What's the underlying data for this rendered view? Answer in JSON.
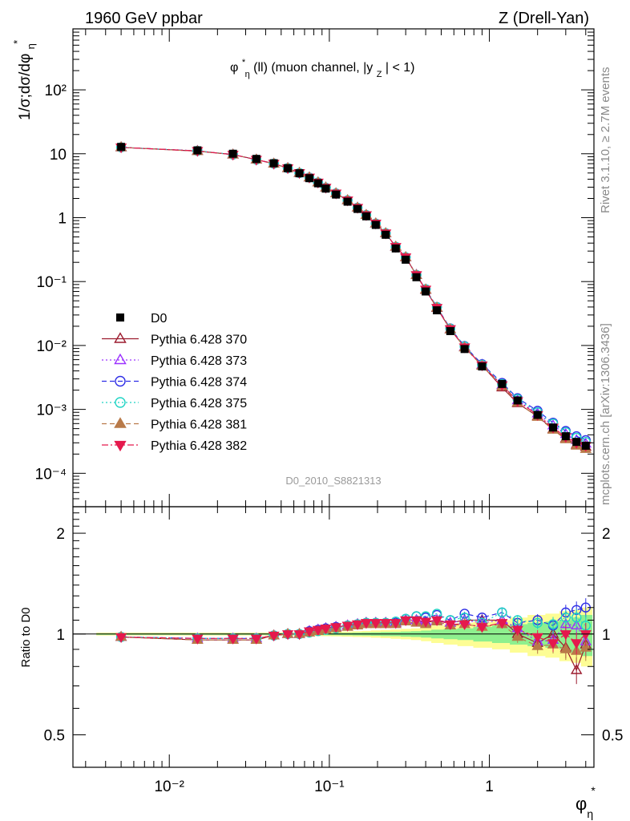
{
  "header": {
    "left": "1960 GeV ppbar",
    "right": "Z (Drell-Yan)"
  },
  "side_labels": {
    "rivet": "Rivet 3.1.10, ≥ 2.7M events",
    "mcplots": "mcplots.cern.ch [arXiv:1306.3436]"
  },
  "chart_data": [
    {
      "type": "line",
      "panel": "main",
      "title": "φη*(ll) (muon channel, |yZ| < 1)",
      "title_parts": {
        "phi": "φ",
        "sup": "*",
        "sub": "η",
        "rest1": "(ll) (muon channel, |y",
        "subz": "Z",
        "rest2": "| < 1)"
      },
      "xlabel": "φη*",
      "ylabel": "1/σ;dσ/dφη*",
      "x_scale": "log",
      "y_scale": "log",
      "xlim": [
        0.0025,
        4.5
      ],
      "ylim": [
        3e-05,
        900
      ],
      "watermark": "D0_2010_S8821313",
      "legend_position": "middle-left",
      "y_ticks": [
        "10⁻⁴",
        "10⁻³",
        "10⁻²",
        "10⁻¹",
        "1",
        "10",
        "10²"
      ],
      "x_ticks": [
        "10⁻²",
        "10⁻¹",
        "1"
      ],
      "x": [
        0.005,
        0.015,
        0.025,
        0.035,
        0.045,
        0.055,
        0.065,
        0.075,
        0.085,
        0.095,
        0.11,
        0.13,
        0.15,
        0.17,
        0.195,
        0.225,
        0.26,
        0.3,
        0.35,
        0.4,
        0.47,
        0.57,
        0.7,
        0.9,
        1.2,
        1.5,
        2.0,
        2.5,
        3.0,
        3.5,
        4.0
      ],
      "series": [
        {
          "name": "D0",
          "color": "#000000",
          "marker": "square-filled",
          "values": [
            12.8,
            11.3,
            10.0,
            8.3,
            7.1,
            5.95,
            4.95,
            4.15,
            3.45,
            2.85,
            2.3,
            1.78,
            1.37,
            1.05,
            0.77,
            0.54,
            0.33,
            0.22,
            0.117,
            0.07,
            0.0355,
            0.0168,
            0.0088,
            0.0047,
            0.0025,
            0.00138,
            0.00082,
            0.00052,
            0.00038,
            0.00031,
            0.00027
          ]
        },
        {
          "name": "Pythia 6.428 370",
          "color": "#9c1b2e",
          "marker": "triangle-up-open",
          "line": "solid",
          "values": [
            12.6,
            11.0,
            9.7,
            8.1,
            7.0,
            5.95,
            5.0,
            4.25,
            3.55,
            2.95,
            2.4,
            1.87,
            1.43,
            1.1,
            0.81,
            0.57,
            0.35,
            0.24,
            0.127,
            0.074,
            0.0385,
            0.0178,
            0.0094,
            0.0049,
            0.0022,
            0.00125,
            0.00078,
            0.00049,
            0.00035,
            0.00028,
            0.00026
          ]
        },
        {
          "name": "Pythia 6.428 373",
          "color": "#9b30ff",
          "marker": "triangle-up-open",
          "line": "dotted",
          "values": [
            12.6,
            11.1,
            9.7,
            8.1,
            7.0,
            5.95,
            5.0,
            4.25,
            3.55,
            2.95,
            2.4,
            1.87,
            1.43,
            1.1,
            0.81,
            0.57,
            0.35,
            0.24,
            0.127,
            0.075,
            0.039,
            0.018,
            0.0095,
            0.005,
            0.0024,
            0.00138,
            0.00086,
            0.00056,
            0.00041,
            0.00033,
            0.00029
          ]
        },
        {
          "name": "Pythia 6.428 374",
          "color": "#2e2ee6",
          "marker": "circle-open",
          "line": "dashed",
          "values": [
            12.6,
            11.1,
            9.7,
            8.1,
            7.0,
            5.95,
            5.0,
            4.25,
            3.55,
            2.95,
            2.4,
            1.87,
            1.43,
            1.1,
            0.81,
            0.57,
            0.35,
            0.24,
            0.127,
            0.076,
            0.04,
            0.0185,
            0.0098,
            0.0051,
            0.0026,
            0.0015,
            0.00095,
            0.00062,
            0.00046,
            0.00038,
            0.00033
          ]
        },
        {
          "name": "Pythia 6.428 375",
          "color": "#1fd4c4",
          "marker": "circle-open",
          "line": "dotted",
          "values": [
            12.6,
            11.1,
            9.7,
            8.1,
            7.0,
            5.95,
            5.0,
            4.25,
            3.55,
            2.95,
            2.4,
            1.87,
            1.43,
            1.1,
            0.81,
            0.57,
            0.35,
            0.24,
            0.127,
            0.076,
            0.04,
            0.0184,
            0.0097,
            0.005,
            0.0025,
            0.00145,
            0.0009,
            0.0006,
            0.00044,
            0.00036,
            0.00031
          ]
        },
        {
          "name": "Pythia 6.428 381",
          "color": "#b97a49",
          "marker": "triangle-up-filled",
          "line": "dashed",
          "values": [
            12.6,
            11.0,
            9.7,
            8.1,
            7.0,
            5.95,
            5.0,
            4.25,
            3.55,
            2.95,
            2.4,
            1.87,
            1.43,
            1.1,
            0.81,
            0.57,
            0.35,
            0.24,
            0.126,
            0.075,
            0.039,
            0.0179,
            0.0093,
            0.0048,
            0.0023,
            0.00128,
            0.00076,
            0.00048,
            0.00034,
            0.00027,
            0.00024
          ]
        },
        {
          "name": "Pythia 6.428 382",
          "color": "#e5194d",
          "marker": "triangle-down-filled",
          "line": "dashdot",
          "values": [
            12.6,
            11.1,
            9.7,
            8.1,
            7.0,
            5.95,
            5.0,
            4.25,
            3.55,
            2.95,
            2.4,
            1.87,
            1.43,
            1.1,
            0.81,
            0.57,
            0.35,
            0.24,
            0.127,
            0.075,
            0.039,
            0.0181,
            0.0094,
            0.0049,
            0.0024,
            0.00135,
            0.00082,
            0.00052,
            0.00037,
            0.0003,
            0.00027
          ]
        }
      ]
    },
    {
      "type": "line",
      "panel": "ratio",
      "ylabel": "Ratio to D0",
      "x_scale": "log",
      "y_scale": "log",
      "xlim": [
        0.0025,
        4.5
      ],
      "ylim": [
        0.4,
        2.4
      ],
      "y_ticks": [
        "0.5",
        "1",
        "2"
      ],
      "x_ticks": [
        "10⁻²",
        "10⁻¹",
        "1"
      ],
      "x": [
        0.005,
        0.015,
        0.025,
        0.035,
        0.045,
        0.055,
        0.065,
        0.075,
        0.085,
        0.095,
        0.11,
        0.13,
        0.15,
        0.17,
        0.195,
        0.225,
        0.26,
        0.3,
        0.35,
        0.4,
        0.47,
        0.57,
        0.7,
        0.9,
        1.2,
        1.5,
        2.0,
        2.5,
        3.0,
        3.5,
        4.0
      ],
      "band_inner": [
        0.005,
        0.005,
        0.005,
        0.005,
        0.005,
        0.006,
        0.006,
        0.007,
        0.007,
        0.008,
        0.008,
        0.009,
        0.01,
        0.011,
        0.012,
        0.014,
        0.015,
        0.018,
        0.02,
        0.024,
        0.03,
        0.035,
        0.04,
        0.05,
        0.06,
        0.07,
        0.08,
        0.09,
        0.1,
        0.12,
        0.14
      ],
      "band_outer": [
        0.01,
        0.01,
        0.01,
        0.01,
        0.01,
        0.012,
        0.012,
        0.013,
        0.014,
        0.015,
        0.016,
        0.018,
        0.02,
        0.022,
        0.025,
        0.028,
        0.032,
        0.036,
        0.04,
        0.048,
        0.06,
        0.07,
        0.08,
        0.09,
        0.1,
        0.12,
        0.14,
        0.15,
        0.17,
        0.18,
        0.2
      ],
      "series": [
        {
          "name": "Pythia 6.428 370",
          "color": "#9c1b2e",
          "marker": "triangle-up-open",
          "line": "solid",
          "values": [
            0.98,
            0.96,
            0.96,
            0.96,
            0.99,
            1.0,
            1.0,
            1.02,
            1.03,
            1.04,
            1.05,
            1.06,
            1.07,
            1.08,
            1.08,
            1.08,
            1.08,
            1.1,
            1.1,
            1.08,
            1.1,
            1.08,
            1.1,
            1.1,
            1.1,
            1.0,
            0.94,
            1.0,
            0.91,
            0.78,
            0.93
          ]
        },
        {
          "name": "Pythia 6.428 373",
          "color": "#9b30ff",
          "marker": "triangle-up-open",
          "line": "dotted",
          "values": [
            0.98,
            0.97,
            0.97,
            0.97,
            0.99,
            1.0,
            1.0,
            1.02,
            1.03,
            1.04,
            1.05,
            1.06,
            1.07,
            1.08,
            1.08,
            1.08,
            1.08,
            1.1,
            1.1,
            1.09,
            1.1,
            1.08,
            1.1,
            1.08,
            1.1,
            1.04,
            0.95,
            0.96,
            1.07,
            1.06,
            0.95
          ]
        },
        {
          "name": "Pythia 6.428 374",
          "color": "#2e2ee6",
          "marker": "circle-open",
          "line": "dashed",
          "values": [
            0.98,
            0.97,
            0.97,
            0.97,
            0.99,
            1.0,
            1.0,
            1.02,
            1.03,
            1.04,
            1.05,
            1.06,
            1.07,
            1.08,
            1.08,
            1.08,
            1.08,
            1.11,
            1.13,
            1.12,
            1.14,
            1.1,
            1.15,
            1.12,
            1.16,
            1.08,
            1.1,
            1.06,
            1.16,
            1.18,
            1.2
          ]
        },
        {
          "name": "Pythia 6.428 375",
          "color": "#1fd4c4",
          "marker": "circle-open",
          "line": "dotted",
          "values": [
            0.98,
            0.97,
            0.97,
            0.97,
            0.99,
            1.0,
            1.0,
            1.01,
            1.02,
            1.03,
            1.04,
            1.06,
            1.07,
            1.08,
            1.08,
            1.08,
            1.09,
            1.11,
            1.13,
            1.13,
            1.15,
            1.1,
            1.12,
            1.08,
            1.16,
            1.1,
            1.08,
            1.07,
            1.12,
            1.12,
            1.06
          ]
        },
        {
          "name": "Pythia 6.428 381",
          "color": "#b97a49",
          "marker": "triangle-up-filled",
          "line": "dashed",
          "values": [
            0.98,
            0.96,
            0.96,
            0.96,
            0.99,
            1.0,
            1.0,
            1.01,
            1.02,
            1.03,
            1.04,
            1.05,
            1.06,
            1.07,
            1.07,
            1.07,
            1.07,
            1.09,
            1.08,
            1.07,
            1.09,
            1.06,
            1.07,
            1.05,
            1.07,
            0.98,
            0.92,
            0.93,
            0.9,
            0.89,
            0.91
          ]
        },
        {
          "name": "Pythia 6.428 382",
          "color": "#e5194d",
          "marker": "triangle-down-filled",
          "line": "dashdot",
          "values": [
            0.98,
            0.97,
            0.97,
            0.97,
            0.99,
            1.0,
            1.0,
            1.02,
            1.03,
            1.04,
            1.05,
            1.06,
            1.07,
            1.08,
            1.08,
            1.08,
            1.08,
            1.1,
            1.1,
            1.09,
            1.1,
            1.07,
            1.07,
            1.05,
            1.08,
            1.03,
            0.98,
            0.94,
            1.0,
            0.94,
            1.0
          ]
        }
      ]
    }
  ]
}
